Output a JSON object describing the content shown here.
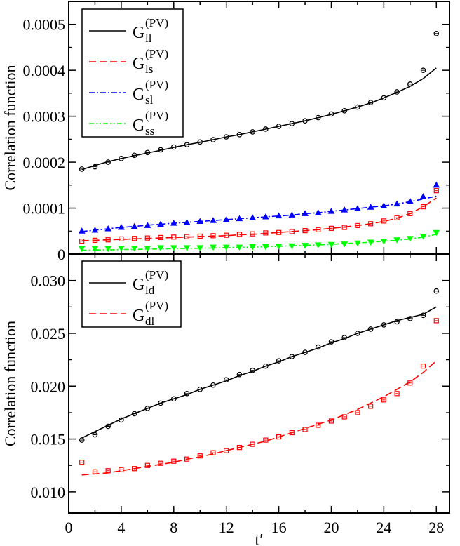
{
  "chart_data": [
    {
      "type": "scatter",
      "panel": "top",
      "xlabel": "",
      "ylabel": "Correlation function",
      "xlim": [
        0,
        29
      ],
      "ylim": [
        0,
        0.00055
      ],
      "yticks": [
        "0",
        "0.0001",
        "0.0002",
        "0.0003",
        "0.0004",
        "0.0005"
      ],
      "ytick_values": [
        0,
        0.0001,
        0.0002,
        0.0003,
        0.0004,
        0.0005
      ],
      "legend_position": "top-left",
      "series": [
        {
          "name": "G_ll^(PV)",
          "label_base": "G",
          "label_sub": "ll",
          "label_sup": "(PV)",
          "color": "#000000",
          "dash": "",
          "marker": "circle",
          "x": [
            1,
            2,
            3,
            4,
            5,
            6,
            7,
            8,
            9,
            10,
            11,
            12,
            13,
            14,
            15,
            16,
            17,
            18,
            19,
            20,
            21,
            22,
            23,
            24,
            25,
            26,
            27,
            28
          ],
          "points": [
            0.000185,
            0.00019,
            0.0002,
            0.000208,
            0.000215,
            0.000221,
            0.000227,
            0.000233,
            0.000238,
            0.000244,
            0.000249,
            0.000255,
            0.00026,
            0.000266,
            0.000272,
            0.000278,
            0.000284,
            0.00029,
            0.000297,
            0.000305,
            0.000312,
            0.00032,
            0.00033,
            0.00034,
            0.000353,
            0.00037,
            0.0004,
            0.00048
          ],
          "fit": [
            0.000184,
            0.000193,
            0.000201,
            0.000208,
            0.000214,
            0.00022,
            0.000226,
            0.000232,
            0.000238,
            0.000243,
            0.000249,
            0.000255,
            0.00026,
            0.000266,
            0.000272,
            0.000278,
            0.000284,
            0.00029,
            0.000297,
            0.000304,
            0.000312,
            0.00032,
            0.000329,
            0.00034,
            0.000352,
            0.000365,
            0.000382,
            0.000405
          ]
        },
        {
          "name": "G_ls^(PV)",
          "label_base": "G",
          "label_sub": "ls",
          "label_sup": "(PV)",
          "color": "#ff0000",
          "dash": "10,5",
          "marker": "square",
          "x": [
            1,
            2,
            3,
            4,
            5,
            6,
            7,
            8,
            9,
            10,
            11,
            12,
            13,
            14,
            15,
            16,
            17,
            18,
            19,
            20,
            21,
            22,
            23,
            24,
            25,
            26,
            27,
            28
          ],
          "points": [
            2.8e-05,
            3e-05,
            3.1e-05,
            3.3e-05,
            3.4e-05,
            3.5e-05,
            3.6e-05,
            3.7e-05,
            3.8e-05,
            3.9e-05,
            4e-05,
            4.1e-05,
            4.3e-05,
            4.4e-05,
            4.6e-05,
            4.7e-05,
            4.9e-05,
            5.1e-05,
            5.3e-05,
            5.6e-05,
            5.8e-05,
            6.2e-05,
            6.6e-05,
            7.2e-05,
            7.9e-05,
            8.8e-05,
            0.000103,
            0.000138
          ],
          "fit": [
            2.9e-05,
            3e-05,
            3.1e-05,
            3.2e-05,
            3.3e-05,
            3.4e-05,
            3.5e-05,
            3.6e-05,
            3.7e-05,
            3.8e-05,
            3.9e-05,
            4e-05,
            4.2e-05,
            4.3e-05,
            4.5e-05,
            4.7e-05,
            4.9e-05,
            5.1e-05,
            5.3e-05,
            5.6e-05,
            5.9e-05,
            6.2e-05,
            6.6e-05,
            7.1e-05,
            7.8e-05,
            8.8e-05,
            0.000103,
            0.000122
          ]
        },
        {
          "name": "G_sl^(PV)",
          "label_base": "G",
          "label_sub": "sl",
          "label_sup": "(PV)",
          "color": "#0000ff",
          "dash": "8,3,2,3",
          "marker": "triangle-up",
          "x": [
            1,
            2,
            3,
            4,
            5,
            6,
            7,
            8,
            9,
            10,
            11,
            12,
            13,
            14,
            15,
            16,
            17,
            18,
            19,
            20,
            21,
            22,
            23,
            24,
            25,
            26,
            27,
            28
          ],
          "points": [
            5e-05,
            5.2e-05,
            5.5e-05,
            5.8e-05,
            6e-05,
            6.2e-05,
            6.5e-05,
            6.7e-05,
            6.9e-05,
            7.1e-05,
            7.3e-05,
            7.5e-05,
            7.7e-05,
            7.9e-05,
            8.1e-05,
            8.3e-05,
            8.5e-05,
            8.8e-05,
            9e-05,
            9.3e-05,
            9.6e-05,
            9.9e-05,
            0.000102,
            0.000105,
            0.000109,
            0.000115,
            0.000125,
            0.00015
          ],
          "fit": [
            4.9e-05,
            5.2e-05,
            5.5e-05,
            5.8e-05,
            6e-05,
            6.3e-05,
            6.5e-05,
            6.7e-05,
            6.9e-05,
            7.1e-05,
            7.3e-05,
            7.5e-05,
            7.7e-05,
            7.9e-05,
            8.1e-05,
            8.3e-05,
            8.5e-05,
            8.8e-05,
            9e-05,
            9.3e-05,
            9.6e-05,
            9.9e-05,
            0.000102,
            0.000105,
            0.000109,
            0.000114,
            0.00012,
            0.000126
          ]
        },
        {
          "name": "G_ss^(PV)",
          "label_base": "G",
          "label_sub": "ss",
          "label_sup": "(PV)",
          "color": "#00ff00",
          "dash": "7,3,2,3,2,3",
          "marker": "triangle-down",
          "x": [
            1,
            2,
            3,
            4,
            5,
            6,
            7,
            8,
            9,
            10,
            11,
            12,
            13,
            14,
            15,
            16,
            17,
            18,
            19,
            20,
            21,
            22,
            23,
            24,
            25,
            26,
            27,
            28
          ],
          "points": [
            1.2e-05,
            1.2e-05,
            1.2e-05,
            1.3e-05,
            1.3e-05,
            1.3e-05,
            1.4e-05,
            1.4e-05,
            1.4e-05,
            1.4e-05,
            1.5e-05,
            1.5e-05,
            1.5e-05,
            1.6e-05,
            1.6e-05,
            1.7e-05,
            1.8e-05,
            1.9e-05,
            2e-05,
            2.1e-05,
            2.2e-05,
            2.4e-05,
            2.6e-05,
            2.8e-05,
            3.1e-05,
            3.4e-05,
            3.9e-05,
            4.7e-05
          ],
          "fit": [
            8e-06,
            9e-06,
            9e-06,
            1e-05,
            1e-05,
            1.1e-05,
            1.1e-05,
            1.2e-05,
            1.2e-05,
            1.3e-05,
            1.3e-05,
            1.4e-05,
            1.5e-05,
            1.5e-05,
            1.6e-05,
            1.7e-05,
            1.8e-05,
            1.9e-05,
            2e-05,
            2.1e-05,
            2.3e-05,
            2.4e-05,
            2.6e-05,
            2.8e-05,
            3e-05,
            3.3e-05,
            3.7e-05,
            4.3e-05
          ]
        }
      ]
    },
    {
      "type": "scatter",
      "panel": "bottom",
      "xlabel": "t′",
      "ylabel": "Correlation function",
      "xlim": [
        0,
        29
      ],
      "ylim": [
        0.008,
        0.0325
      ],
      "xticks": [
        "0",
        "4",
        "8",
        "12",
        "16",
        "20",
        "24",
        "28"
      ],
      "xtick_values": [
        0,
        4,
        8,
        12,
        16,
        20,
        24,
        28
      ],
      "yticks": [
        "0.010",
        "0.015",
        "0.020",
        "0.025",
        "0.030"
      ],
      "ytick_values": [
        0.01,
        0.015,
        0.02,
        0.025,
        0.03
      ],
      "legend_position": "top-left",
      "series": [
        {
          "name": "G_ld^(PV)",
          "label_base": "G",
          "label_sub": "ld",
          "label_sup": "(PV)",
          "color": "#000000",
          "dash": "",
          "marker": "circle",
          "x": [
            1,
            2,
            3,
            4,
            5,
            6,
            7,
            8,
            9,
            10,
            11,
            12,
            13,
            14,
            15,
            16,
            17,
            18,
            19,
            20,
            21,
            22,
            23,
            24,
            25,
            26,
            27,
            28
          ],
          "points": [
            0.0149,
            0.0154,
            0.0162,
            0.0168,
            0.0174,
            0.0179,
            0.0184,
            0.0188,
            0.0193,
            0.0197,
            0.0201,
            0.0206,
            0.0211,
            0.0215,
            0.0219,
            0.0224,
            0.0228,
            0.0232,
            0.0237,
            0.0242,
            0.0246,
            0.025,
            0.0254,
            0.0258,
            0.0261,
            0.0264,
            0.0267,
            0.029
          ],
          "fit": [
            0.0151,
            0.0157,
            0.0163,
            0.0169,
            0.0174,
            0.0179,
            0.0184,
            0.0188,
            0.0192,
            0.0197,
            0.0201,
            0.0205,
            0.021,
            0.0214,
            0.0219,
            0.0223,
            0.0228,
            0.0232,
            0.0236,
            0.0241,
            0.0245,
            0.025,
            0.0254,
            0.0258,
            0.0262,
            0.0265,
            0.0268,
            0.0275
          ]
        },
        {
          "name": "G_dl^(PV)",
          "label_base": "G",
          "label_sub": "dl",
          "label_sup": "(PV)",
          "color": "#ff0000",
          "dash": "10,5",
          "marker": "square",
          "x": [
            1,
            2,
            3,
            4,
            5,
            6,
            7,
            8,
            9,
            10,
            11,
            12,
            13,
            14,
            15,
            16,
            17,
            18,
            19,
            20,
            21,
            22,
            23,
            24,
            25,
            26,
            27,
            28
          ],
          "points": [
            0.0128,
            0.0119,
            0.012,
            0.0121,
            0.0122,
            0.0125,
            0.0127,
            0.0129,
            0.0131,
            0.0134,
            0.0137,
            0.0139,
            0.0142,
            0.0145,
            0.0149,
            0.0152,
            0.0156,
            0.0159,
            0.0163,
            0.0167,
            0.0171,
            0.0175,
            0.0181,
            0.0187,
            0.0193,
            0.0203,
            0.0219,
            0.0262
          ],
          "fit": [
            0.0116,
            0.0117,
            0.0118,
            0.012,
            0.0122,
            0.0124,
            0.0126,
            0.0128,
            0.0131,
            0.0133,
            0.0136,
            0.0139,
            0.0142,
            0.0145,
            0.0148,
            0.0152,
            0.0156,
            0.016,
            0.0164,
            0.0168,
            0.0173,
            0.0178,
            0.0184,
            0.019,
            0.0197,
            0.0204,
            0.0213,
            0.0224
          ]
        }
      ]
    }
  ]
}
